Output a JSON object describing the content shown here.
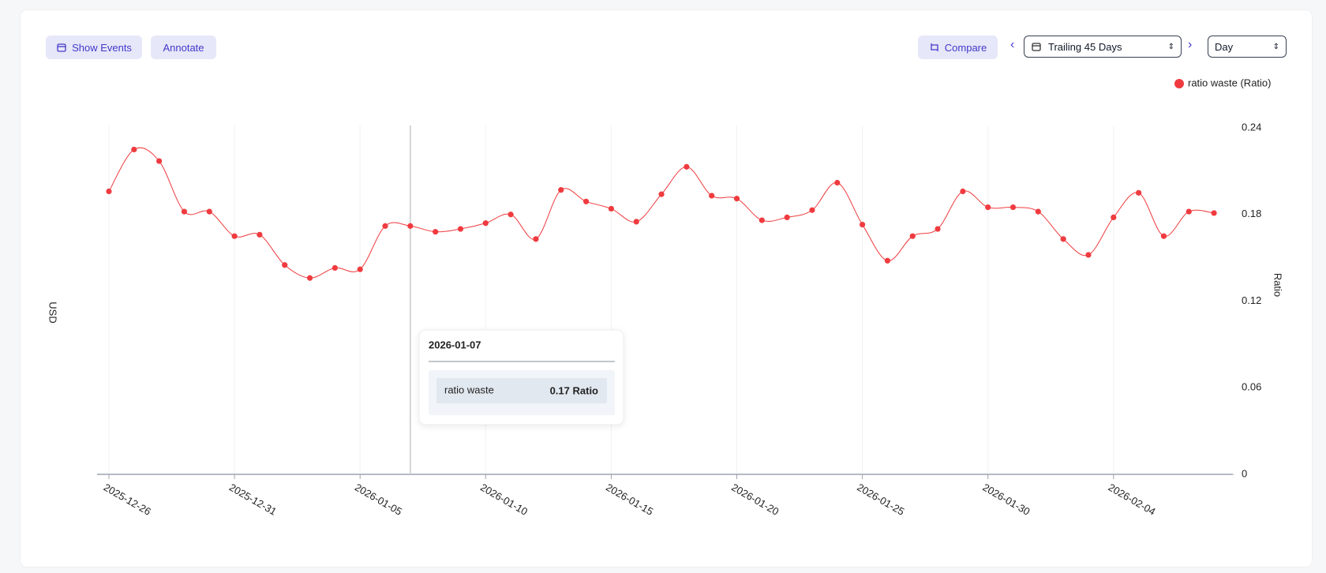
{
  "toolbar": {
    "show_events": "Show Events",
    "annotate": "Annotate",
    "compare": "Compare",
    "range": "Trailing 45 Days",
    "granularity": "Day"
  },
  "chart_data": {
    "type": "line",
    "ylabel": "USD",
    "y2label": "Ratio",
    "x": [
      "2025-12-26",
      "2025-12-27",
      "2025-12-28",
      "2025-12-29",
      "2025-12-30",
      "2025-12-31",
      "2026-01-01",
      "2026-01-02",
      "2026-01-03",
      "2026-01-04",
      "2026-01-05",
      "2026-01-06",
      "2026-01-07",
      "2026-01-08",
      "2026-01-09",
      "2026-01-10",
      "2026-01-11",
      "2026-01-12",
      "2026-01-13",
      "2026-01-14",
      "2026-01-15",
      "2026-01-16",
      "2026-01-17",
      "2026-01-18",
      "2026-01-19",
      "2026-01-20",
      "2026-01-21",
      "2026-01-22",
      "2026-01-23",
      "2026-01-24",
      "2026-01-25",
      "2026-01-26",
      "2026-01-27",
      "2026-01-28",
      "2026-01-29",
      "2026-01-30",
      "2026-01-31",
      "2026-02-01",
      "2026-02-02",
      "2026-02-03",
      "2026-02-04",
      "2026-02-05",
      "2026-02-06",
      "2026-02-07",
      "2026-02-08"
    ],
    "series": [
      {
        "name": "ratio waste (Ratio)",
        "color": "#ef3b3f",
        "axis": "y2",
        "values": [
          0.196,
          0.225,
          0.217,
          0.182,
          0.182,
          0.165,
          0.166,
          0.145,
          0.136,
          0.143,
          0.142,
          0.172,
          0.172,
          0.168,
          0.17,
          0.174,
          0.18,
          0.163,
          0.197,
          0.189,
          0.184,
          0.175,
          0.194,
          0.213,
          0.193,
          0.191,
          0.176,
          0.178,
          0.183,
          0.202,
          0.173,
          0.148,
          0.165,
          0.17,
          0.196,
          0.185,
          0.185,
          0.182,
          0.163,
          0.152,
          0.178,
          0.195,
          0.165,
          0.182,
          0.181
        ]
      }
    ],
    "y2lim": [
      0,
      0.24
    ],
    "y2ticks": [
      0,
      0.06,
      0.12,
      0.18,
      0.24
    ],
    "grid": true,
    "legend": "top-right",
    "tooltip": {
      "x": "2026-01-07",
      "label": "ratio waste",
      "value": 0.17,
      "value_label": "0.17 Ratio"
    }
  }
}
